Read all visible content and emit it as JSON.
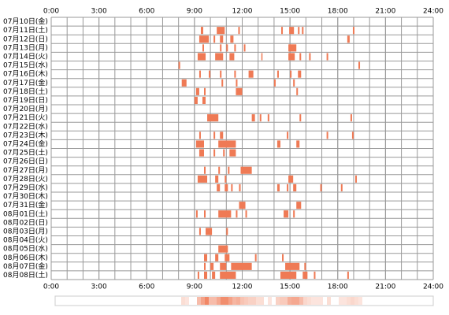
{
  "chart_data": {
    "type": "timeline",
    "categories": [
      "07月10日(金)",
      "07月11日(土)",
      "07月12日(日)",
      "07月13日(月)",
      "07月14日(火)",
      "07月15日(水)",
      "07月16日(木)",
      "07月17日(金)",
      "07月18日(土)",
      "07月19日(日)",
      "07月20日(月)",
      "07月21日(火)",
      "07月22日(水)",
      "07月23日(木)",
      "07月24日(金)",
      "07月25日(土)",
      "07月26日(日)",
      "07月27日(月)",
      "07月28日(火)",
      "07月29日(水)",
      "07月30日(木)",
      "07月31日(金)",
      "08月01日(土)",
      "08月02日(日)",
      "08月03日(月)",
      "08月04日(火)",
      "08月05日(水)",
      "08月06日(木)",
      "08月07日(金)",
      "08月08日(土)"
    ],
    "events": [
      [],
      [
        [
          9.4,
          9.55
        ],
        [
          10.4,
          10.9
        ],
        [
          11.75,
          11.85
        ],
        [
          14.45,
          14.55
        ],
        [
          14.95,
          15.25
        ],
        [
          15.5,
          15.6
        ],
        [
          15.75,
          15.85
        ],
        [
          18.95,
          19.05
        ]
      ],
      [
        [
          9.3,
          9.9
        ],
        [
          10.2,
          10.3
        ],
        [
          10.6,
          10.8
        ],
        [
          11.25,
          11.45
        ],
        [
          18.6,
          18.75
        ]
      ],
      [
        [
          9.5,
          9.6
        ],
        [
          10.6,
          10.7
        ],
        [
          11.0,
          11.1
        ],
        [
          11.5,
          11.6
        ],
        [
          12.1,
          12.2
        ],
        [
          14.9,
          15.4
        ]
      ],
      [
        [
          9.2,
          9.7
        ],
        [
          10.3,
          10.8
        ],
        [
          11.2,
          11.5
        ],
        [
          13.2,
          13.25
        ],
        [
          14.9,
          15.3
        ],
        [
          15.6,
          15.7
        ],
        [
          16.2,
          16.3
        ],
        [
          17.3,
          17.4
        ]
      ],
      [
        [
          8.0,
          8.1
        ],
        [
          19.3,
          19.4
        ]
      ],
      [
        [
          9.3,
          9.4
        ],
        [
          9.9,
          10.0
        ],
        [
          10.6,
          10.7
        ],
        [
          11.5,
          11.6
        ],
        [
          12.4,
          12.7
        ],
        [
          14.2,
          14.3
        ],
        [
          15.0,
          15.1
        ],
        [
          15.5,
          15.7
        ]
      ],
      [
        [
          8.2,
          8.5
        ],
        [
          10.7,
          10.8
        ],
        [
          11.6,
          11.7
        ],
        [
          14.0,
          14.1
        ],
        [
          15.2,
          15.3
        ]
      ],
      [
        [
          9.1,
          9.3
        ],
        [
          9.6,
          9.7
        ],
        [
          11.6,
          12.0
        ],
        [
          15.4,
          15.5
        ]
      ],
      [
        [
          9.0,
          9.2
        ],
        [
          9.5,
          9.7
        ]
      ],
      [],
      [
        [
          9.8,
          10.5
        ],
        [
          12.6,
          12.8
        ],
        [
          13.1,
          13.2
        ],
        [
          13.6,
          13.7
        ],
        [
          15.6,
          15.7
        ],
        [
          18.8,
          18.9
        ]
      ],
      [],
      [
        [
          9.3,
          9.4
        ],
        [
          10.2,
          10.3
        ],
        [
          10.6,
          10.8
        ],
        [
          14.8,
          14.9
        ],
        [
          17.3,
          17.4
        ],
        [
          18.9,
          19.0
        ]
      ],
      [
        [
          9.1,
          9.6
        ],
        [
          10.5,
          11.6
        ],
        [
          14.2,
          14.4
        ],
        [
          15.4,
          15.6
        ]
      ],
      [
        [
          9.3,
          9.6
        ],
        [
          10.2,
          10.3
        ],
        [
          10.8,
          10.9
        ],
        [
          11.2,
          11.6
        ]
      ],
      [],
      [
        [
          9.6,
          9.7
        ],
        [
          10.5,
          10.6
        ],
        [
          11.1,
          11.2
        ],
        [
          11.9,
          12.6
        ]
      ],
      [
        [
          9.2,
          9.8
        ],
        [
          10.3,
          10.5
        ],
        [
          10.9,
          11.0
        ],
        [
          14.9,
          15.2
        ],
        [
          19.1,
          19.2
        ]
      ],
      [
        [
          10.4,
          10.6
        ],
        [
          10.9,
          11.1
        ],
        [
          11.3,
          11.4
        ],
        [
          11.8,
          11.9
        ],
        [
          14.2,
          14.35
        ],
        [
          14.8,
          14.9
        ],
        [
          15.2,
          15.4
        ],
        [
          16.9,
          17.0
        ],
        [
          18.2,
          18.3
        ]
      ],
      [],
      [
        [
          11.8,
          12.2
        ],
        [
          15.4,
          15.7
        ]
      ],
      [
        [
          9.1,
          9.2
        ],
        [
          9.6,
          9.7
        ],
        [
          10.5,
          11.3
        ],
        [
          11.6,
          11.7
        ],
        [
          12.2,
          12.3
        ],
        [
          14.6,
          14.9
        ],
        [
          15.2,
          15.3
        ]
      ],
      [],
      [
        [
          9.3,
          9.4
        ],
        [
          9.7,
          10.1
        ],
        [
          11.0,
          11.1
        ]
      ],
      [],
      [
        [
          10.5,
          11.1
        ]
      ],
      [
        [
          9.6,
          9.8
        ],
        [
          10.3,
          10.5
        ],
        [
          10.9,
          11.2
        ],
        [
          12.8,
          12.9
        ],
        [
          14.5,
          14.6
        ]
      ],
      [
        [
          9.6,
          9.7
        ],
        [
          10.0,
          10.2
        ],
        [
          10.6,
          11.0
        ],
        [
          11.3,
          12.6
        ],
        [
          14.7,
          15.6
        ],
        [
          15.9,
          16.0
        ]
      ],
      [
        [
          9.2,
          9.3
        ],
        [
          9.6,
          9.8
        ],
        [
          10.1,
          10.3
        ],
        [
          10.6,
          11.6
        ],
        [
          14.4,
          15.4
        ],
        [
          15.8,
          16.1
        ],
        [
          16.5,
          16.6
        ],
        [
          18.6,
          18.7
        ]
      ]
    ],
    "color": "#ef7a55",
    "xlim": [
      0,
      24
    ],
    "xticks": [
      {
        "value": 0,
        "label": "0:00"
      },
      {
        "value": 3,
        "label": "3:00"
      },
      {
        "value": 6,
        "label": "6:00"
      },
      {
        "value": 9,
        "label": "9:00"
      },
      {
        "value": 12,
        "label": "12:00"
      },
      {
        "value": 15,
        "label": "15:00"
      },
      {
        "value": 18,
        "label": "18:00"
      },
      {
        "value": 21,
        "label": "21:00"
      },
      {
        "value": 24,
        "label": "24:00"
      }
    ],
    "grid": true
  }
}
